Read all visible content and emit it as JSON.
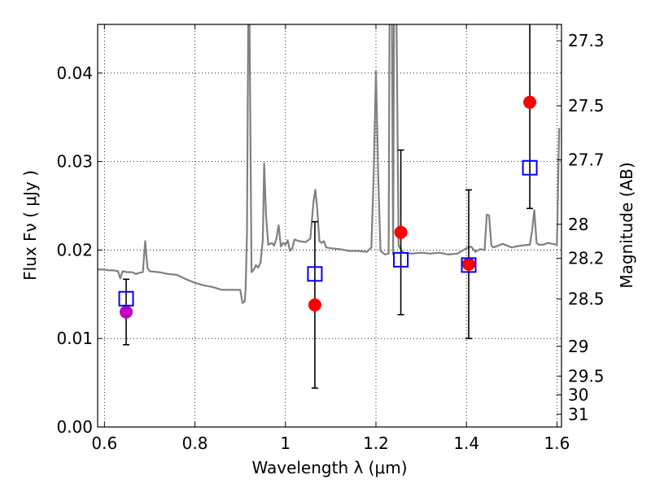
{
  "chart_data": {
    "type": "scatter",
    "title": "",
    "xlabel": "Wavelength  λ (μm)",
    "ylabel_left": "Flux  Fν  ( μJy )",
    "ylabel_right": "Magnitude (AB)",
    "xlim": [
      0.585,
      1.61
    ],
    "ylim": [
      0.0,
      0.0455
    ],
    "grid": true,
    "x_ticks": [
      {
        "value": 0.6,
        "label": "0.6"
      },
      {
        "value": 0.8,
        "label": "0.8"
      },
      {
        "value": 1.0,
        "label": "1"
      },
      {
        "value": 1.2,
        "label": "1.2"
      },
      {
        "value": 1.4,
        "label": "1.4"
      },
      {
        "value": 1.6,
        "label": "1.6"
      }
    ],
    "y_ticks": [
      {
        "value": 0.0,
        "label": "0.00"
      },
      {
        "value": 0.01,
        "label": "0.01"
      },
      {
        "value": 0.02,
        "label": "0.02"
      },
      {
        "value": 0.03,
        "label": "0.03"
      },
      {
        "value": 0.04,
        "label": "0.04"
      }
    ],
    "right_ticks": [
      {
        "value": 27.3,
        "label": "27.3"
      },
      {
        "value": 27.5,
        "label": "27.5"
      },
      {
        "value": 27.7,
        "label": "27.7"
      },
      {
        "value": 28.0,
        "label": "28"
      },
      {
        "value": 28.2,
        "label": "28.2"
      },
      {
        "value": 28.5,
        "label": "28.5"
      },
      {
        "value": 29.0,
        "label": "29"
      },
      {
        "value": 29.5,
        "label": "29.5"
      },
      {
        "value": 30.0,
        "label": "30"
      },
      {
        "value": 31.0,
        "label": "31"
      }
    ],
    "series": [
      {
        "kind": "line",
        "color": "#808080",
        "x": [
          0.585,
          0.6,
          0.61,
          0.62,
          0.63,
          0.635,
          0.64,
          0.65,
          0.66,
          0.67,
          0.675,
          0.685,
          0.69,
          0.695,
          0.7,
          0.72,
          0.74,
          0.76,
          0.78,
          0.8,
          0.82,
          0.84,
          0.86,
          0.88,
          0.9,
          0.905,
          0.91,
          0.912,
          0.915,
          0.918,
          0.92,
          0.925,
          0.93,
          0.935,
          0.94,
          0.945,
          0.95,
          0.953,
          0.957,
          0.962,
          0.97,
          0.975,
          0.98,
          0.985,
          0.99,
          0.995,
          1.0,
          1.005,
          1.01,
          1.015,
          1.02,
          1.025,
          1.03,
          1.045,
          1.055,
          1.062,
          1.066,
          1.07,
          1.075,
          1.08,
          1.085,
          1.09,
          1.1,
          1.12,
          1.14,
          1.16,
          1.18,
          1.19,
          1.195,
          1.2,
          1.205,
          1.21,
          1.215,
          1.22,
          1.228,
          1.23,
          1.235,
          1.238,
          1.24,
          1.245,
          1.25,
          1.26,
          1.28,
          1.3,
          1.32,
          1.34,
          1.36,
          1.38,
          1.4,
          1.41,
          1.42,
          1.43,
          1.44,
          1.445,
          1.45,
          1.455,
          1.46,
          1.48,
          1.5,
          1.52,
          1.54,
          1.545,
          1.55,
          1.555,
          1.56,
          1.57,
          1.58,
          1.59,
          1.6,
          1.605
        ],
        "y": [
          0.0178,
          0.0178,
          0.0177,
          0.0177,
          0.0176,
          0.0168,
          0.0176,
          0.0175,
          0.0175,
          0.0173,
          0.0174,
          0.0175,
          0.021,
          0.018,
          0.0176,
          0.0175,
          0.0173,
          0.0172,
          0.0167,
          0.0163,
          0.016,
          0.0158,
          0.0155,
          0.0155,
          0.0155,
          0.014,
          0.0142,
          0.0155,
          0.0218,
          0.048,
          0.0495,
          0.0175,
          0.0178,
          0.0183,
          0.018,
          0.0186,
          0.0212,
          0.0298,
          0.024,
          0.0206,
          0.0208,
          0.0205,
          0.0213,
          0.0228,
          0.0204,
          0.0208,
          0.0206,
          0.0211,
          0.0199,
          0.0202,
          0.0212,
          0.0211,
          0.021,
          0.0209,
          0.0213,
          0.0255,
          0.0268,
          0.0248,
          0.021,
          0.0208,
          0.021,
          0.0203,
          0.0202,
          0.0201,
          0.0199,
          0.0199,
          0.0198,
          0.0203,
          0.0285,
          0.0402,
          0.0283,
          0.0199,
          0.0197,
          0.0195,
          0.0196,
          0.047,
          0.048,
          0.0195,
          0.047,
          0.049,
          0.0205,
          0.0197,
          0.0196,
          0.0197,
          0.0196,
          0.0197,
          0.0195,
          0.0196,
          0.0202,
          0.0204,
          0.0198,
          0.0201,
          0.02,
          0.024,
          0.0239,
          0.0205,
          0.0203,
          0.0207,
          0.0203,
          0.0205,
          0.0206,
          0.0222,
          0.0245,
          0.0208,
          0.0206,
          0.0206,
          0.0208,
          0.0207,
          0.0206,
          0.0338
        ]
      },
      {
        "kind": "points",
        "marker": "circle",
        "color": "#ff0000",
        "x": [
          1.065,
          1.255,
          1.405,
          1.54
        ],
        "y": [
          0.0138,
          0.022,
          0.0184,
          0.0367
        ],
        "yerr": [
          0.0094,
          0.0093,
          0.0084,
          0.012
        ]
      },
      {
        "kind": "points",
        "marker": "circle",
        "color": "#bf00bf",
        "x": [
          0.648
        ],
        "y": [
          0.013
        ],
        "yerr": [
          0.0037
        ]
      },
      {
        "kind": "points",
        "marker": "open-square",
        "color": "#0000ff",
        "x": [
          0.648,
          1.065,
          1.255,
          1.405,
          1.54
        ],
        "y": [
          0.0145,
          0.0173,
          0.0189,
          0.0183,
          0.0293
        ]
      }
    ]
  }
}
